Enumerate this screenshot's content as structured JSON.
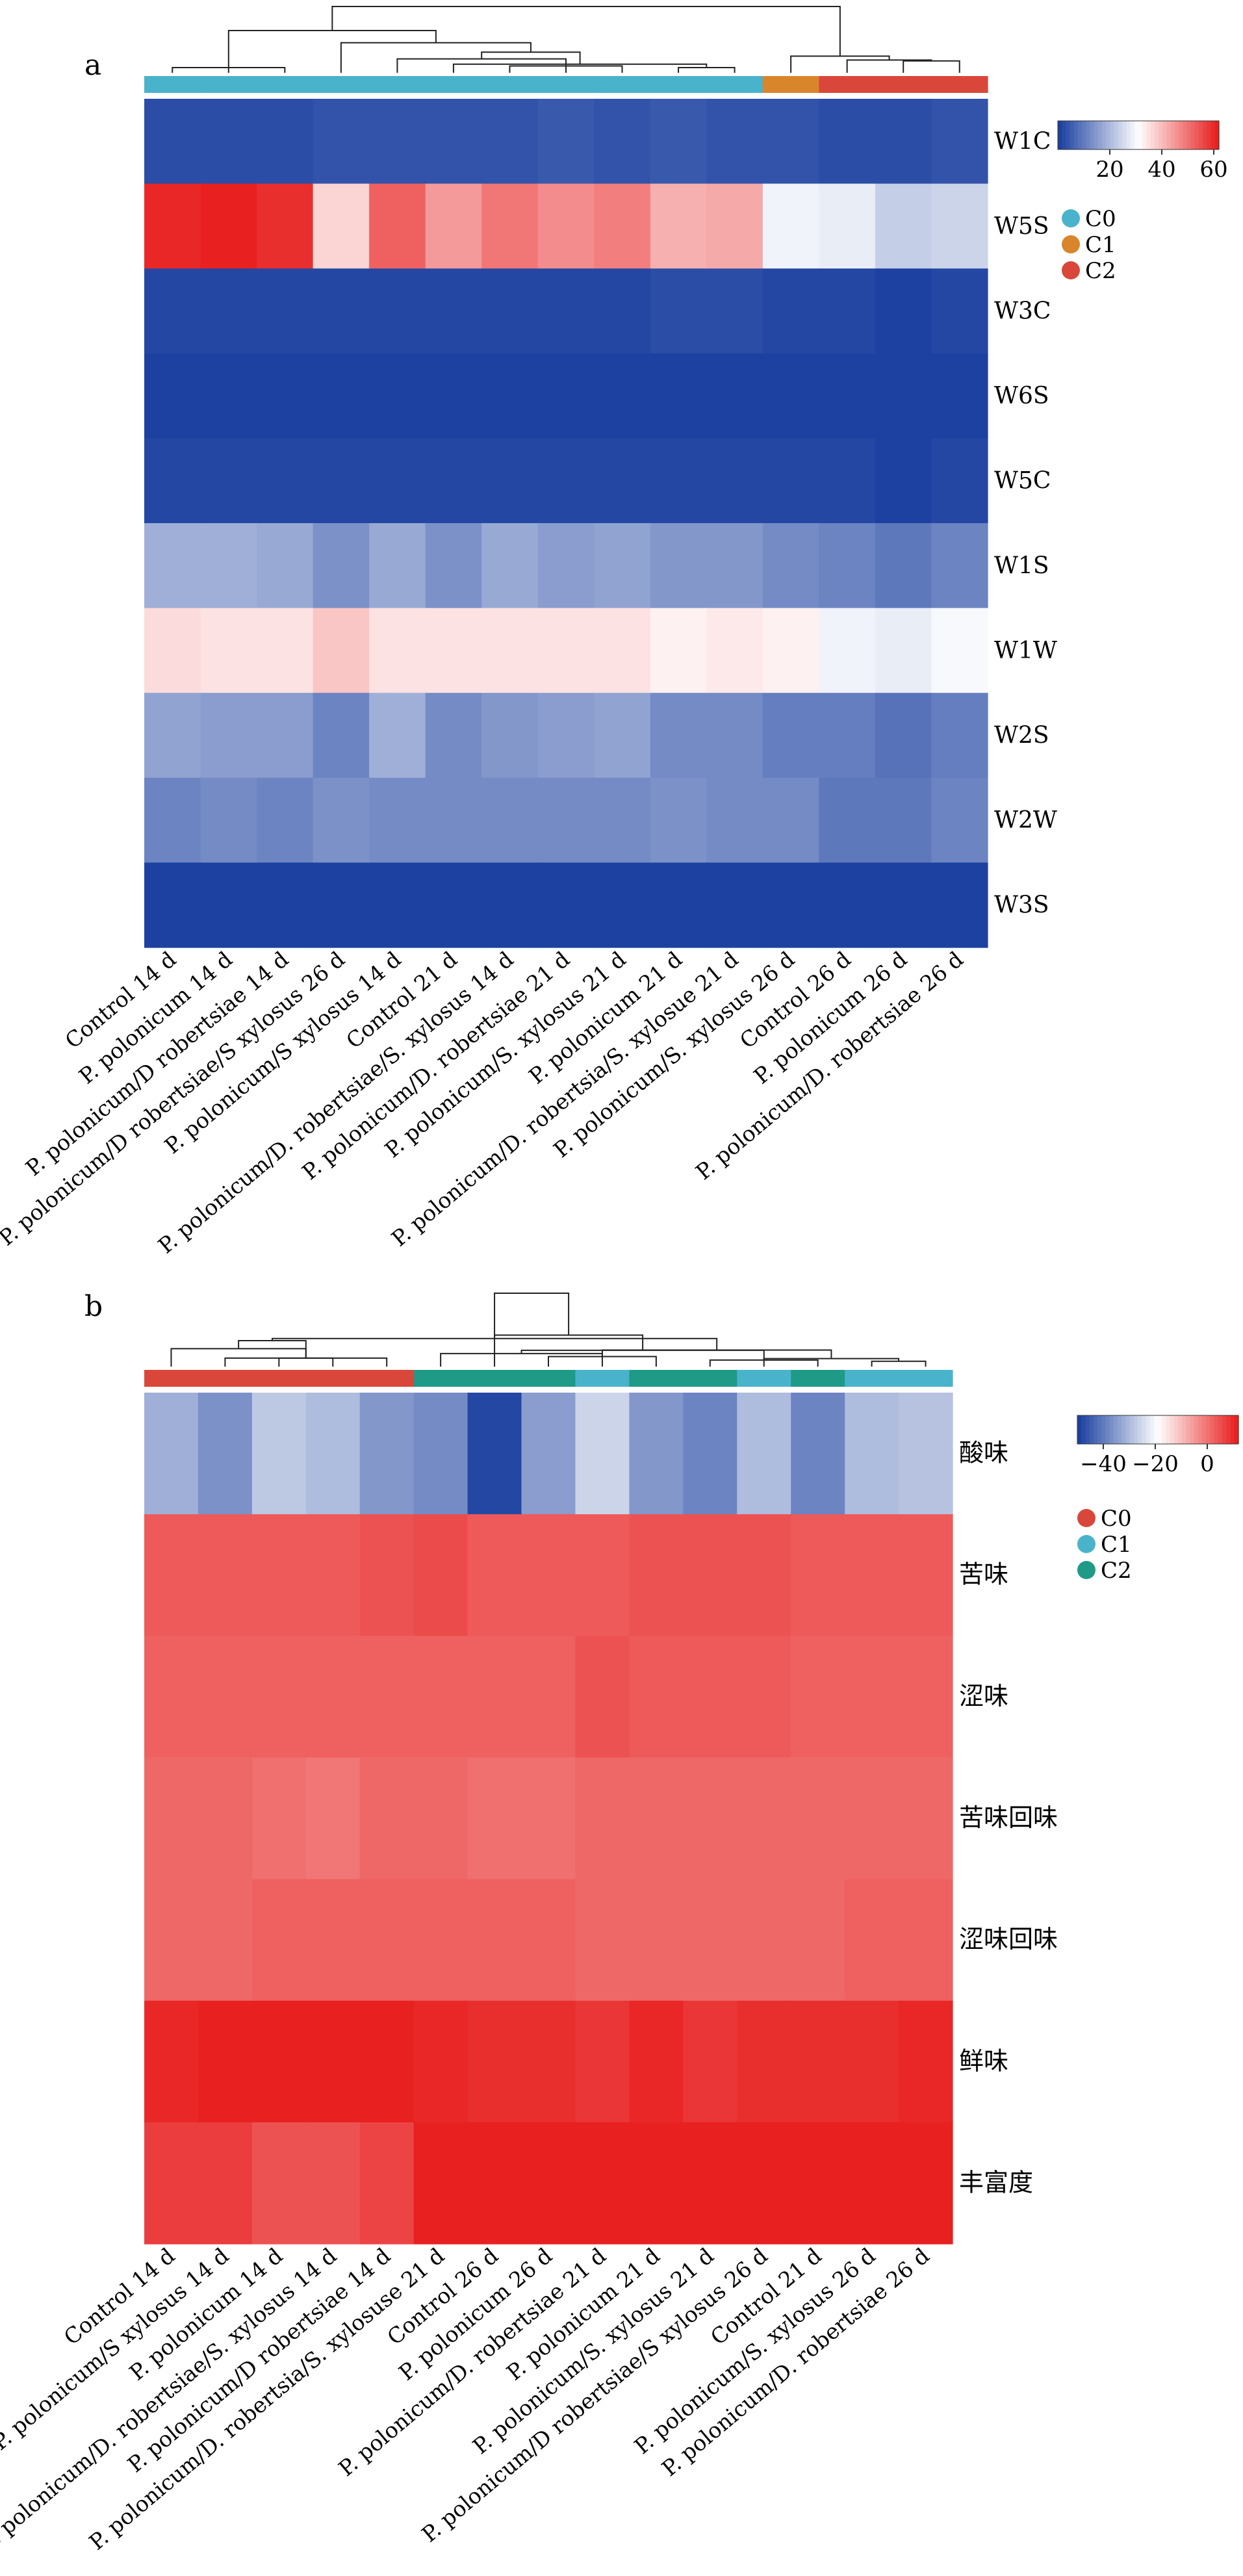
{
  "chart_data": [
    {
      "type": "heatmap",
      "panel_label": "a",
      "rows": [
        "W1C",
        "W5S",
        "W3C",
        "W6S",
        "W5C",
        "W1S",
        "W1W",
        "W2S",
        "W2W",
        "W3S"
      ],
      "columns": [
        "Control 14 d",
        "P. polonicum 14 d",
        "P. polonicum/D robertsiae 14 d",
        "P. polonicum/D robertsiae/S xylosus 26 d",
        "P. polonicum/S xylosus 14 d",
        "Control 21 d",
        "P. polonicum/D. robertsiae/S. xylosus 14 d",
        "P. polonicum/D. robertsiae 21 d",
        "P. polonicum/S. xylosus 21 d",
        "P. polonicum 21 d",
        "P. polonicum/D. robertsia/S. xylosue 21 d",
        "P. polonicum/S. xylosus 26 d",
        "Control 26 d",
        "P. polonicum 26 d",
        "P. polonicum/D. robertsiae 26 d"
      ],
      "values": [
        [
          2,
          2,
          2,
          3,
          3,
          3,
          3,
          4,
          3,
          4,
          3,
          3,
          2,
          2,
          3
        ],
        [
          61,
          64,
          60,
          37,
          53,
          45,
          50,
          47,
          49,
          42,
          43,
          29,
          28,
          23,
          24
        ],
        [
          1,
          1,
          1,
          1,
          1,
          1,
          1,
          1,
          1,
          2,
          2,
          1,
          1,
          0,
          1
        ],
        [
          0,
          -1,
          0,
          0,
          0,
          0,
          0,
          0,
          0,
          0,
          0,
          0,
          0,
          -1,
          0
        ],
        [
          1,
          1,
          1,
          1,
          1,
          1,
          1,
          1,
          1,
          1,
          1,
          1,
          1,
          0,
          1
        ],
        [
          18,
          18,
          17,
          13,
          17,
          13,
          17,
          15,
          16,
          14,
          14,
          12,
          11,
          9,
          11
        ],
        [
          36,
          35,
          35,
          39,
          35,
          35,
          35,
          35,
          35,
          33,
          34,
          33,
          29,
          28,
          30
        ],
        [
          16,
          15,
          15,
          11,
          18,
          12,
          14,
          15,
          16,
          12,
          12,
          10,
          10,
          8,
          10
        ],
        [
          11,
          12,
          11,
          13,
          12,
          12,
          12,
          12,
          12,
          13,
          12,
          12,
          9,
          9,
          11
        ],
        [
          0,
          0,
          0,
          0,
          0,
          0,
          -1,
          0,
          0,
          0,
          0,
          0,
          0,
          0,
          0
        ]
      ],
      "colorbar": {
        "ticks": [
          20,
          40,
          60
        ],
        "min": 0,
        "max": 62
      },
      "cluster_labels": [
        "C0",
        "C1",
        "C2"
      ],
      "cluster_colors": [
        "#4ab3cc",
        "#d9852c",
        "#d9473a"
      ],
      "column_clusters": [
        "C0",
        "C0",
        "C0",
        "C0",
        "C0",
        "C0",
        "C0",
        "C0",
        "C0",
        "C0",
        "C0",
        "C1",
        "C2",
        "C2",
        "C2"
      ]
    },
    {
      "type": "heatmap",
      "panel_label": "b",
      "rows": [
        "酸味",
        "苦味",
        "涩味",
        "苦味回味",
        "涩味回味",
        "鲜味",
        "丰富度"
      ],
      "columns": [
        "Control 14 d",
        "P. polonicum/S xylosus 14 d",
        "P. polonicum 14 d",
        "P. polonicum/D. robertsiae/S. xylosus 14 d",
        "P. polonicum/D robertsiae 14 d",
        "P. polonicum/D. robertsia/S. xylosuse 21 d",
        "Control 26 d",
        "P. polonicum 26 d",
        "P. polonicum/D. robertsiae 21 d",
        "P. polonicum 21 d",
        "P. polonicum/S. xylosus 21 d",
        "P. polonicum/D robertsiae/S xylosus 26 d",
        "Control 21 d",
        "P. polonicum/S. xylosus 26 d",
        "P. polonicum/D. robertsiae 26 d"
      ],
      "values": [
        [
          -32,
          -37,
          -28,
          -30,
          -36,
          -38,
          -49,
          -35,
          -26,
          -36,
          -39,
          -30,
          -39,
          -30,
          -29
        ],
        [
          4,
          4,
          4,
          4,
          5,
          6,
          4,
          4,
          4,
          5,
          5,
          5,
          4,
          4,
          4
        ],
        [
          3,
          3,
          3,
          3,
          3,
          3,
          3,
          3,
          5,
          4,
          4,
          4,
          3,
          3,
          3
        ],
        [
          2,
          2,
          1,
          0,
          2,
          2,
          1,
          1,
          2,
          2,
          2,
          2,
          2,
          2,
          2
        ],
        [
          2,
          2,
          3,
          3,
          3,
          3,
          3,
          3,
          2,
          2,
          2,
          2,
          2,
          3,
          3
        ],
        [
          11,
          12,
          12,
          12,
          13,
          11,
          10,
          10,
          9,
          11,
          9,
          10,
          10,
          10,
          11
        ],
        [
          8,
          8,
          5,
          5,
          7,
          12,
          22,
          14,
          13,
          13,
          16,
          13,
          16,
          12,
          12
        ]
      ],
      "colorbar": {
        "ticks": [
          -40,
          -20,
          0
        ],
        "min": -50,
        "max": 12
      },
      "cluster_labels": [
        "C0",
        "C1",
        "C2"
      ],
      "cluster_colors": [
        "#d9473a",
        "#4ab3cc",
        "#1f9a87"
      ],
      "column_clusters": [
        "C0",
        "C0",
        "C0",
        "C0",
        "C0",
        "C2",
        "C2",
        "C2",
        "C1",
        "C2",
        "C2",
        "C1",
        "C2",
        "C1",
        "C1"
      ]
    }
  ]
}
